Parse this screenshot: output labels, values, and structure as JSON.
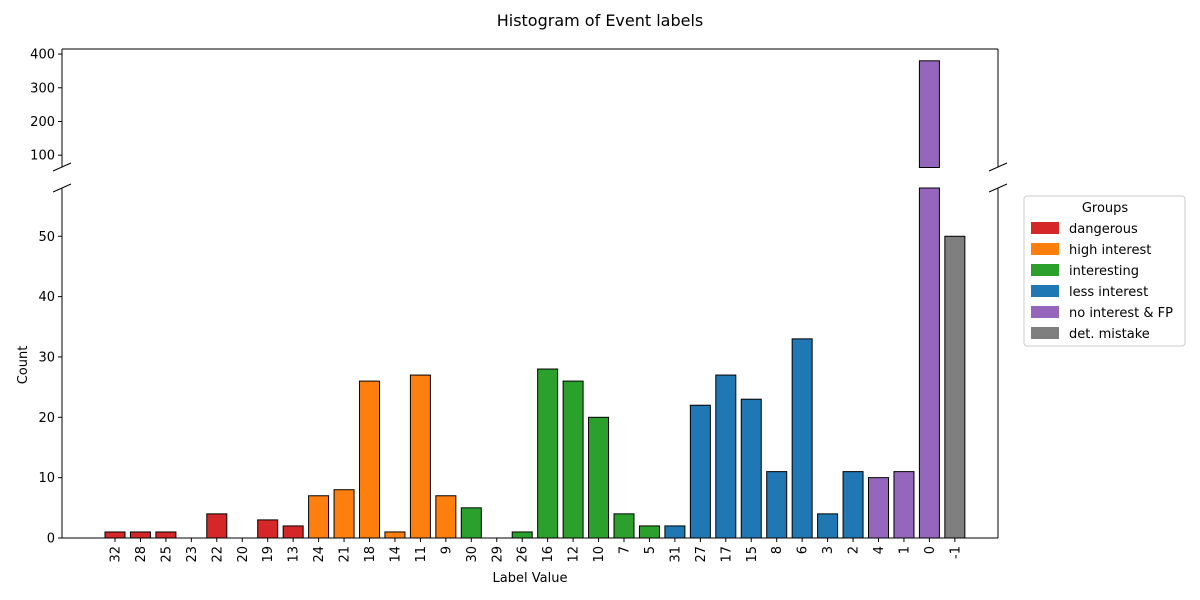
{
  "chart_data": {
    "type": "bar",
    "title": "Histogram of Event labels",
    "xlabel": "Label Value",
    "ylabel": "Count",
    "broken_y_axis": true,
    "ylim_lower": [
      0,
      58
    ],
    "ylim_upper": [
      65,
      415
    ],
    "yticks_lower": [
      "0",
      "10",
      "20",
      "30",
      "40",
      "50"
    ],
    "yticks_upper": [
      "100",
      "200",
      "300",
      "400"
    ],
    "yticks_lower_values": [
      0,
      10,
      20,
      30,
      40,
      50
    ],
    "yticks_upper_values": [
      100,
      200,
      300,
      400
    ],
    "categories": [
      "32",
      "28",
      "25",
      "23",
      "22",
      "20",
      "19",
      "13",
      "24",
      "21",
      "18",
      "14",
      "11",
      "9",
      "30",
      "29",
      "26",
      "16",
      "12",
      "10",
      "7",
      "5",
      "31",
      "27",
      "17",
      "15",
      "8",
      "6",
      "3",
      "2",
      "4",
      "1",
      "0",
      "-1"
    ],
    "values": [
      1,
      1,
      1,
      0,
      4,
      0,
      3,
      2,
      7,
      8,
      26,
      1,
      27,
      7,
      5,
      0,
      1,
      28,
      26,
      20,
      4,
      2,
      2,
      22,
      27,
      23,
      11,
      33,
      4,
      11,
      10,
      11,
      380,
      50
    ],
    "groups": [
      "dangerous",
      "dangerous",
      "dangerous",
      "dangerous",
      "dangerous",
      "dangerous",
      "dangerous",
      "dangerous",
      "high interest",
      "high interest",
      "high interest",
      "high interest",
      "high interest",
      "high interest",
      "interesting",
      "interesting",
      "interesting",
      "interesting",
      "interesting",
      "interesting",
      "interesting",
      "interesting",
      "less interest",
      "less interest",
      "less interest",
      "less interest",
      "less interest",
      "less interest",
      "less interest",
      "less interest",
      "no interest & FP",
      "no interest & FP",
      "no interest & FP",
      "det. mistake"
    ],
    "legend": {
      "title": "Groups",
      "placement": "outside-right",
      "items": [
        {
          "label": "dangerous",
          "color": "#d62728"
        },
        {
          "label": "high interest",
          "color": "#ff7f0e"
        },
        {
          "label": "interesting",
          "color": "#2ca02c"
        },
        {
          "label": "less interest",
          "color": "#1f77b4"
        },
        {
          "label": "no interest & FP",
          "color": "#9467bd"
        },
        {
          "label": "det. mistake",
          "color": "#7f7f7f"
        }
      ]
    },
    "grid": false
  }
}
